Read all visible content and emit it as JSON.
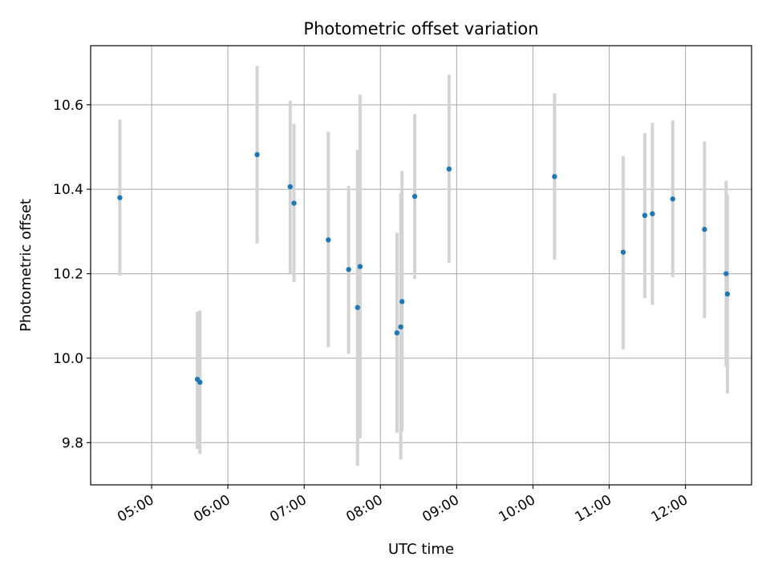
{
  "chart_data": {
    "type": "scatter",
    "title": "Photometric offset variation",
    "xlabel": "UTC time",
    "ylabel": "Photometric offset",
    "x_unit": "UTC time (HH:MM)",
    "xlim": [
      "04:12",
      "12:52"
    ],
    "ylim": [
      9.7,
      10.74
    ],
    "grid": true,
    "x_ticks": [
      "05:00",
      "06:00",
      "07:00",
      "08:00",
      "09:00",
      "10:00",
      "11:00",
      "12:00"
    ],
    "y_ticks": [
      9.8,
      10.0,
      10.2,
      10.4,
      10.6
    ],
    "y_tick_labels": [
      "9.8",
      "10.0",
      "10.2",
      "10.4",
      "10.6"
    ],
    "point_color": "#1f77b4",
    "errorbar_color": "#d3d3d3",
    "points": [
      {
        "x": "04:35",
        "y": 10.38,
        "ylow": 10.195,
        "yhigh": 10.565
      },
      {
        "x": "05:36",
        "y": 9.95,
        "ylow": 9.785,
        "yhigh": 10.11
      },
      {
        "x": "05:38",
        "y": 9.943,
        "ylow": 9.773,
        "yhigh": 10.113
      },
      {
        "x": "06:23",
        "y": 10.482,
        "ylow": 10.272,
        "yhigh": 10.692
      },
      {
        "x": "06:49",
        "y": 10.406,
        "ylow": 10.2,
        "yhigh": 10.61
      },
      {
        "x": "06:52",
        "y": 10.367,
        "ylow": 10.18,
        "yhigh": 10.555
      },
      {
        "x": "07:19",
        "y": 10.28,
        "ylow": 10.026,
        "yhigh": 10.536
      },
      {
        "x": "07:35",
        "y": 10.21,
        "ylow": 10.01,
        "yhigh": 10.408
      },
      {
        "x": "07:42",
        "y": 10.12,
        "ylow": 9.745,
        "yhigh": 10.493
      },
      {
        "x": "07:44",
        "y": 10.217,
        "ylow": 9.81,
        "yhigh": 10.624
      },
      {
        "x": "08:13",
        "y": 10.06,
        "ylow": 9.823,
        "yhigh": 10.297
      },
      {
        "x": "08:16",
        "y": 10.074,
        "ylow": 9.76,
        "yhigh": 10.39
      },
      {
        "x": "08:17",
        "y": 10.134,
        "ylow": 9.826,
        "yhigh": 10.443
      },
      {
        "x": "08:27",
        "y": 10.383,
        "ylow": 10.188,
        "yhigh": 10.578
      },
      {
        "x": "08:54",
        "y": 10.448,
        "ylow": 10.226,
        "yhigh": 10.671
      },
      {
        "x": "10:17",
        "y": 10.43,
        "ylow": 10.233,
        "yhigh": 10.627
      },
      {
        "x": "11:11",
        "y": 10.251,
        "ylow": 10.021,
        "yhigh": 10.478
      },
      {
        "x": "11:28",
        "y": 10.338,
        "ylow": 10.142,
        "yhigh": 10.533
      },
      {
        "x": "11:34",
        "y": 10.342,
        "ylow": 10.126,
        "yhigh": 10.557
      },
      {
        "x": "11:50",
        "y": 10.377,
        "ylow": 10.192,
        "yhigh": 10.563
      },
      {
        "x": "12:15",
        "y": 10.305,
        "ylow": 10.095,
        "yhigh": 10.513
      },
      {
        "x": "12:32",
        "y": 10.2,
        "ylow": 9.98,
        "yhigh": 10.42
      },
      {
        "x": "12:33",
        "y": 10.152,
        "ylow": 9.916,
        "yhigh": 10.388
      }
    ]
  }
}
